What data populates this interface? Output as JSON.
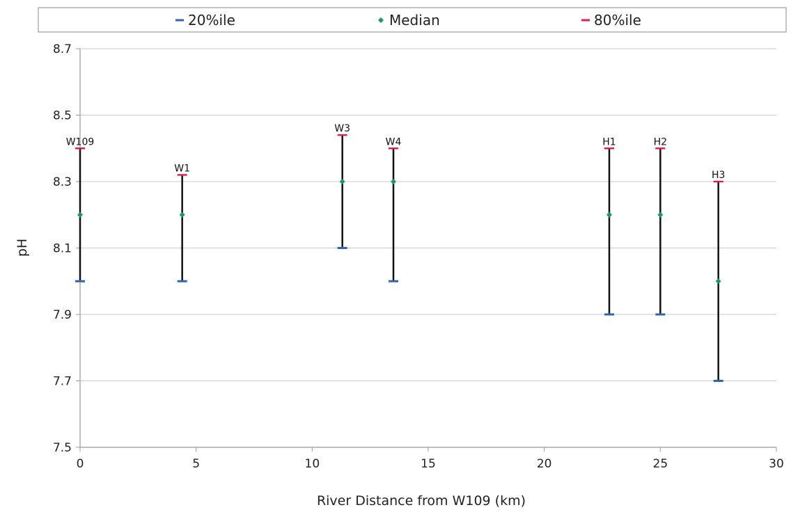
{
  "chart_data": {
    "type": "scatter",
    "title": "",
    "xlabel": "River Distance from W109 (km)",
    "ylabel": "pH",
    "xlim": [
      0,
      30
    ],
    "ylim": [
      7.5,
      8.7
    ],
    "x_ticks": [
      0,
      5,
      10,
      15,
      20,
      25,
      30
    ],
    "y_ticks": [
      7.5,
      7.7,
      7.9,
      8.1,
      8.3,
      8.5,
      8.7
    ],
    "y_tick_labels": [
      "7.5",
      "7.7",
      "7.9",
      "8.1",
      "8.3",
      "8.5",
      "8.7"
    ],
    "grid": "horizontal",
    "legend_position": "top",
    "legend": [
      {
        "name": "20%ile",
        "marker": "dash",
        "color": "#2e64b4"
      },
      {
        "name": "Median",
        "marker": "diamond",
        "color": "#1a9a5a"
      },
      {
        "name": "80%ile",
        "marker": "dash",
        "color": "#e0204a"
      }
    ],
    "sites": [
      {
        "label": "W109",
        "x": 0,
        "p20": 8.0,
        "median": 8.2,
        "p80": 8.4
      },
      {
        "label": "W1",
        "x": 4.4,
        "p20": 8.0,
        "median": 8.2,
        "p80": 8.32
      },
      {
        "label": "W3",
        "x": 11.3,
        "p20": 8.1,
        "median": 8.3,
        "p80": 8.44
      },
      {
        "label": "W4",
        "x": 13.5,
        "p20": 8.0,
        "median": 8.3,
        "p80": 8.4
      },
      {
        "label": "H1",
        "x": 22.8,
        "p20": 7.9,
        "median": 8.2,
        "p80": 8.4
      },
      {
        "label": "H2",
        "x": 25.0,
        "p20": 7.9,
        "median": 8.2,
        "p80": 8.4
      },
      {
        "label": "H3",
        "x": 27.5,
        "p20": 7.7,
        "median": 8.0,
        "p80": 8.3
      }
    ]
  }
}
